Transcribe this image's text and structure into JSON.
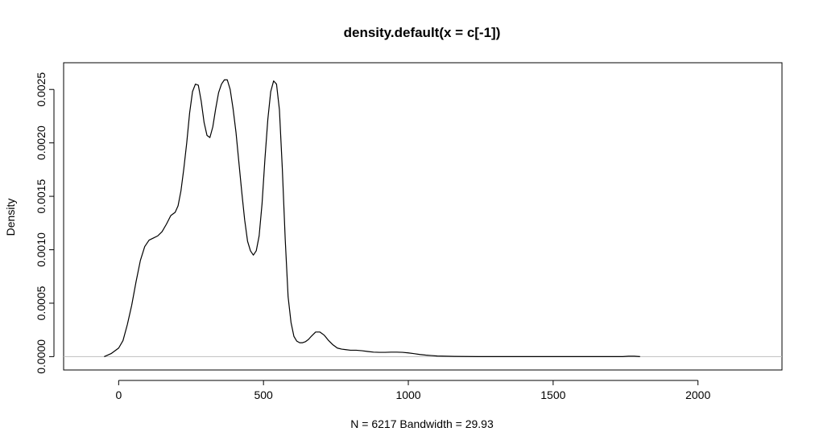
{
  "chart_data": {
    "type": "line",
    "title": "density.default(x = c[-1])",
    "xlabel": "N = 6217   Bandwidth = 29.93",
    "ylabel": "Density",
    "xlim": [
      -190,
      2290
    ],
    "ylim": [
      -0.000125,
      0.00275
    ],
    "x_ticks": [
      0,
      500,
      1000,
      1500,
      2000
    ],
    "x_tick_labels": [
      "0",
      "500",
      "1000",
      "1500",
      "2000"
    ],
    "y_ticks": [
      0.0,
      0.0005,
      0.001,
      0.0015,
      0.002,
      0.0025
    ],
    "y_tick_labels": [
      "0.0000",
      "0.0005",
      "0.0010",
      "0.0015",
      "0.0020",
      "0.0025"
    ],
    "baseline": 0,
    "grid": false,
    "line_color": "#000000",
    "baseline_color": "#bebebe",
    "series": [
      {
        "x": [
          -50,
          -25,
          0,
          15,
          30,
          45,
          60,
          75,
          90,
          105,
          120,
          135,
          150,
          165,
          180,
          195,
          205,
          215,
          225,
          235,
          245,
          255,
          265,
          275,
          285,
          295,
          305,
          315,
          325,
          335,
          345,
          355,
          365,
          375,
          385,
          395,
          405,
          415,
          425,
          435,
          445,
          455,
          465,
          475,
          485,
          495,
          505,
          515,
          525,
          535,
          545,
          555,
          565,
          575,
          585,
          595,
          605,
          615,
          625,
          635,
          645,
          655,
          665,
          680,
          695,
          710,
          725,
          740,
          755,
          770,
          785,
          800,
          820,
          840,
          860,
          880,
          900,
          920,
          940,
          960,
          980,
          1000,
          1020,
          1040,
          1060,
          1080,
          1100,
          1130,
          1160,
          1200,
          1240,
          1260,
          1300,
          1740,
          1760,
          1780,
          1800
        ],
        "y": [
          0.0,
          3e-05,
          8e-05,
          0.00015,
          0.0003,
          0.00048,
          0.0007,
          0.0009,
          0.00103,
          0.00109,
          0.00111,
          0.00113,
          0.00117,
          0.00124,
          0.00132,
          0.00135,
          0.00141,
          0.00155,
          0.00176,
          0.002,
          0.00228,
          0.00248,
          0.00255,
          0.00254,
          0.00239,
          0.00219,
          0.00207,
          0.00205,
          0.00215,
          0.00232,
          0.00247,
          0.00255,
          0.00259,
          0.00259,
          0.0025,
          0.00232,
          0.0021,
          0.00182,
          0.00154,
          0.00128,
          0.00108,
          0.00099,
          0.00095,
          0.00099,
          0.00113,
          0.00143,
          0.00185,
          0.00222,
          0.00248,
          0.00258,
          0.00255,
          0.00231,
          0.00176,
          0.0011,
          0.00056,
          0.00032,
          0.00019,
          0.000145,
          0.00013,
          0.00013,
          0.00014,
          0.00016,
          0.00019,
          0.00023,
          0.00023,
          0.0002,
          0.00015,
          0.00011,
          8e-05,
          7e-05,
          6.5e-05,
          6e-05,
          6e-05,
          5.5e-05,
          4.8e-05,
          4.2e-05,
          4e-05,
          4e-05,
          4.2e-05,
          4.2e-05,
          4e-05,
          3.5e-05,
          2.8e-05,
          2e-05,
          1.4e-05,
          1e-05,
          6e-06,
          4e-06,
          2e-06,
          1e-06,
          0.0,
          0.0,
          0.0,
          0.0,
          4e-06,
          4e-06,
          0.0
        ]
      }
    ]
  }
}
